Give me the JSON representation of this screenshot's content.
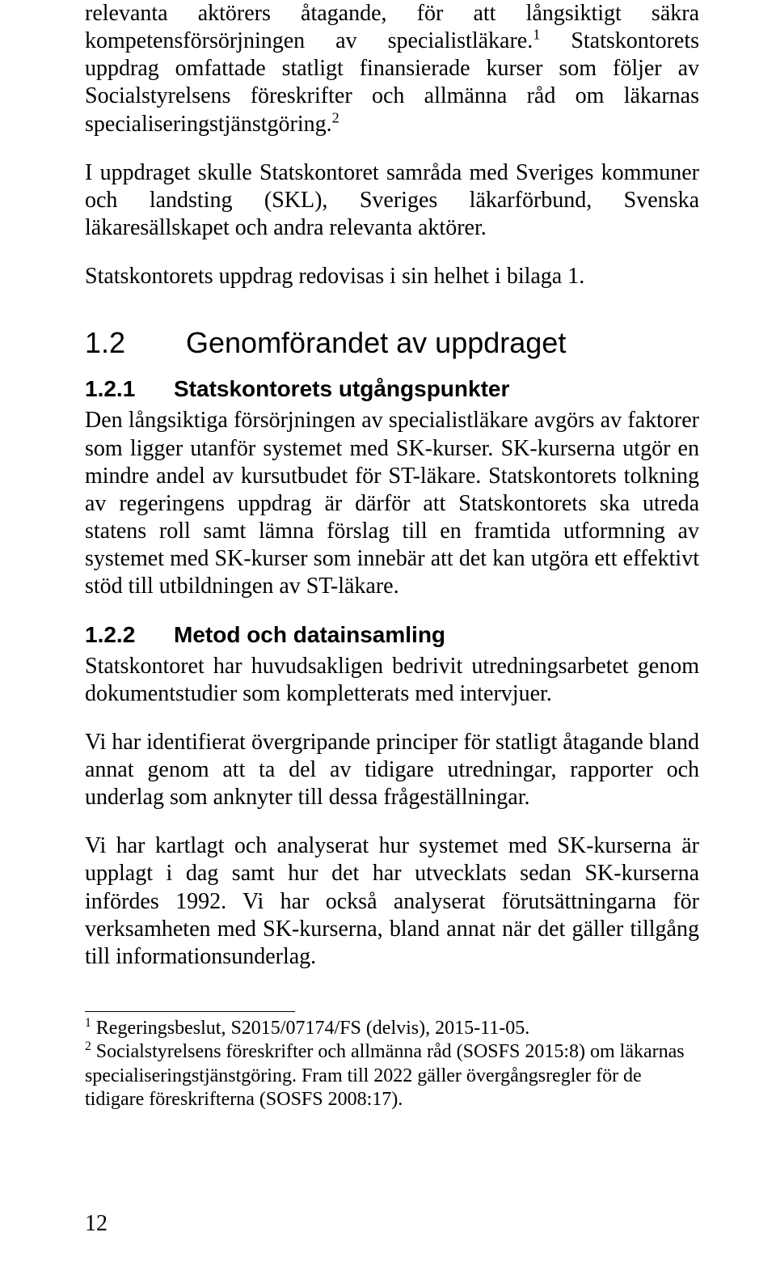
{
  "paragraphs": {
    "p1_a": "relevanta aktörers åtagande, för att långsiktigt säkra kompetensförsörj­ningen av specialistläkare.",
    "p1_b": " Statskontorets uppdrag omfattade statligt finansierade kurser som följer av Socialstyrelsens föreskrifter och all­männa råd om läkarnas specialiseringstjänstgöring.",
    "p2": "I uppdraget skulle Statskontoret samråda med Sveriges kommuner och landsting (SKL), Sveriges läkarförbund, Svenska läkaresällskapet och andra relevanta aktörer.",
    "p3": "Statskontorets uppdrag redovisas i sin helhet i bilaga 1.",
    "p4": "Den långsiktiga försörjningen av specialistläkare avgörs av faktorer som ligger utanför systemet med SK-kurser. SK-kurserna utgör en mindre andel av kursutbudet för ST-läkare. Statskontorets tolkning av rege­ringens uppdrag är därför att Statskontorets ska utreda statens roll samt lämna förslag till en framtida utformning av systemet med SK-kurser som innebär att det kan utgöra ett effektivt stöd till utbildningen av ST-läkare.",
    "p5": "Statskontoret har huvudsakligen bedrivit utredningsarbetet genom dokumentstudier som kompletterats med intervjuer.",
    "p6": "Vi har identifierat övergripande principer för statligt åtagande bland annat genom att ta del av tidigare utredningar, rapporter och underlag som anknyter till dessa frågeställningar.",
    "p7": "Vi har kartlagt och analyserat hur systemet med SK-kurserna är upplagt i dag samt hur det har utvecklats sedan SK-kurserna infördes 1992. Vi har också analyserat förutsättningarna för verksamheten med SK-kur­serna, bland annat när det gäller tillgång till informationsunderlag."
  },
  "sup": {
    "s1": "1",
    "s2": "2"
  },
  "headings": {
    "h2_num": "1.2",
    "h2_text": "Genomförandet av uppdraget",
    "h3a_num": "1.2.1",
    "h3a_text": "Statskontorets utgångspunkter",
    "h3b_num": "1.2.2",
    "h3b_text": "Metod och datainsamling"
  },
  "footnotes": {
    "f1_num": "1",
    "f1_text": " Regeringsbeslut, S2015/07174/FS (delvis), 2015-11-05.",
    "f2_num": "2",
    "f2_text": " Socialstyrelsens föreskrifter och allmänna råd (SOSFS 2015:8) om läkarnas speciali­seringstjänstgöring. Fram till 2022 gäller övergångsregler för de tidigare föreskrifterna (SOSFS 2008:17)."
  },
  "page_number": "12"
}
